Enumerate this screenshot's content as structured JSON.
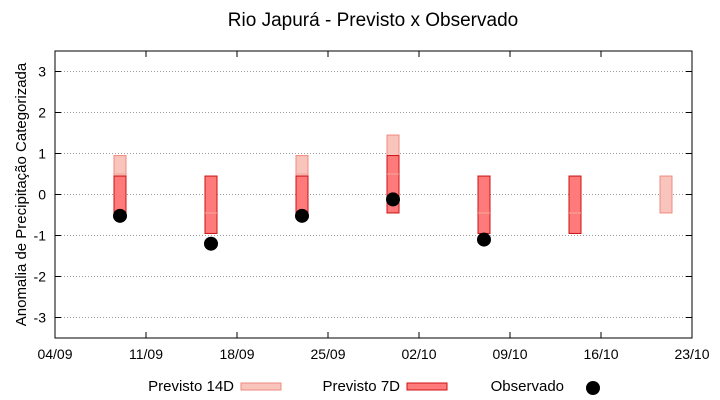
{
  "chart_data": {
    "type": "range-bar-scatter",
    "title": "Rio Japurá - Previsto x Observado",
    "xlabel": "",
    "ylabel": "Anomalia de Precipitação Categorizada",
    "ylim": [
      -3.5,
      3.5
    ],
    "y_ticks": [
      "3",
      "2",
      "1",
      "0",
      "-1",
      "-2",
      "-3"
    ],
    "y_tick_values": [
      3,
      2,
      1,
      0,
      -1,
      -2,
      -3
    ],
    "x_range": [
      "2023-09-04",
      "2023-10-23"
    ],
    "x_ticks": [
      "04/09",
      "11/09",
      "18/09",
      "25/09",
      "02/10",
      "09/10",
      "16/10",
      "23/10"
    ],
    "x_tick_dates": [
      "2023-09-04",
      "2023-09-11",
      "2023-09-18",
      "2023-09-25",
      "2023-10-02",
      "2023-10-09",
      "2023-10-16",
      "2023-10-23"
    ],
    "grid": "horizontal dotted",
    "legend_position": "bottom",
    "series": [
      {
        "name": "Previsto 14D",
        "color": "#f9c4bb",
        "stroke": "#f08a80",
        "bars": [
          {
            "x": "2023-09-09",
            "low": -0.5,
            "high": 0.95
          },
          {
            "x": "2023-09-16",
            "low": -0.95,
            "high": 0.45
          },
          {
            "x": "2023-09-23",
            "low": -0.5,
            "high": 0.95
          },
          {
            "x": "2023-09-30",
            "low": -0.45,
            "high": 1.45
          },
          {
            "x": "2023-10-07",
            "low": -0.95,
            "high": 0.45
          },
          {
            "x": "2023-10-14",
            "low": -0.95,
            "high": 0.45
          },
          {
            "x": "2023-10-21",
            "low": -0.45,
            "high": 0.45
          }
        ]
      },
      {
        "name": "Previsto 7D",
        "color": "#ff7b7b",
        "stroke": "#cc1111",
        "bars": [
          {
            "x": "2023-09-09",
            "low": -0.5,
            "high": 0.45
          },
          {
            "x": "2023-09-16",
            "low": -0.95,
            "high": 0.45
          },
          {
            "x": "2023-09-23",
            "low": -0.5,
            "high": 0.45
          },
          {
            "x": "2023-09-30",
            "low": -0.45,
            "high": 0.95
          },
          {
            "x": "2023-10-07",
            "low": -0.95,
            "high": 0.45
          },
          {
            "x": "2023-10-14",
            "low": -0.95,
            "high": 0.45
          }
        ]
      },
      {
        "name": "Observado",
        "color": "#000000",
        "points": [
          {
            "x": "2023-09-09",
            "y": -0.52
          },
          {
            "x": "2023-09-16",
            "y": -1.2
          },
          {
            "x": "2023-09-23",
            "y": -0.52
          },
          {
            "x": "2023-09-30",
            "y": -0.12
          },
          {
            "x": "2023-10-07",
            "y": -1.1
          }
        ]
      }
    ]
  }
}
